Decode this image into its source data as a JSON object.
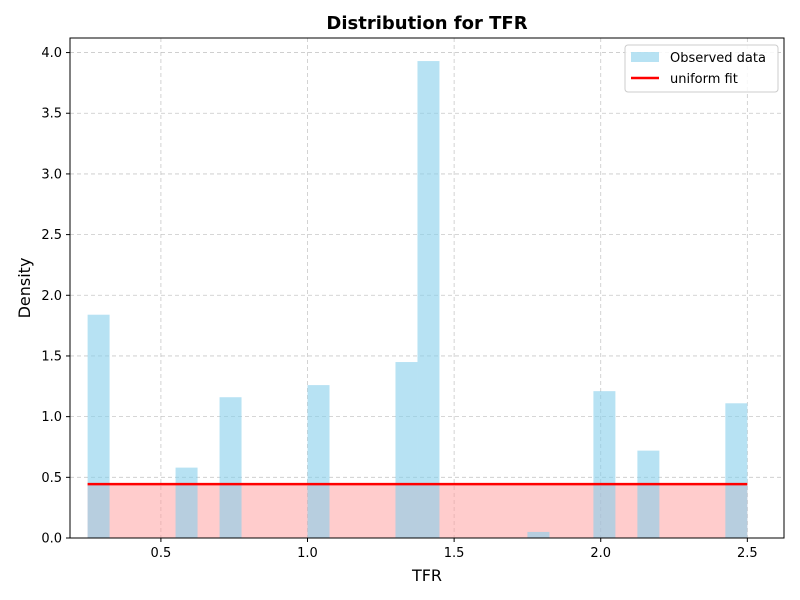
{
  "chart_data": {
    "type": "bar",
    "title": "Distribution for TFR",
    "xlabel": "TFR",
    "ylabel": "Density",
    "xlim": [
      0.19,
      2.625
    ],
    "ylim": [
      0,
      4.12
    ],
    "xticks": [
      0.5,
      1.0,
      1.5,
      2.0,
      2.5
    ],
    "xtick_labels": [
      "0.5",
      "1.0",
      "1.5",
      "2.0",
      "2.5"
    ],
    "yticks": [
      0.0,
      0.5,
      1.0,
      1.5,
      2.0,
      2.5,
      3.0,
      3.5,
      4.0
    ],
    "ytick_labels": [
      "0.0",
      "0.5",
      "1.0",
      "1.5",
      "2.0",
      "2.5",
      "3.0",
      "3.5",
      "4.0"
    ],
    "grid": true,
    "legend_position": "top-right",
    "series": [
      {
        "name": "Observed data",
        "kind": "histogram",
        "color": "#87CEEB",
        "bins": [
          {
            "x0": 0.25,
            "x1": 0.325,
            "value": 1.84
          },
          {
            "x0": 0.55,
            "x1": 0.625,
            "value": 0.58
          },
          {
            "x0": 0.7,
            "x1": 0.775,
            "value": 1.16
          },
          {
            "x0": 1.0,
            "x1": 1.075,
            "value": 1.26
          },
          {
            "x0": 1.3,
            "x1": 1.375,
            "value": 1.45
          },
          {
            "x0": 1.375,
            "x1": 1.45,
            "value": 3.93
          },
          {
            "x0": 1.75,
            "x1": 1.825,
            "value": 0.05
          },
          {
            "x0": 1.975,
            "x1": 2.05,
            "value": 1.21
          },
          {
            "x0": 2.125,
            "x1": 2.2,
            "value": 0.72
          },
          {
            "x0": 2.425,
            "x1": 2.5,
            "value": 1.11
          }
        ]
      },
      {
        "name": "uniform fit",
        "kind": "line",
        "color": "#FF0000",
        "fill_color": "#FF9999",
        "x": [
          0.25,
          2.5
        ],
        "y": [
          0.444,
          0.444
        ]
      }
    ]
  }
}
